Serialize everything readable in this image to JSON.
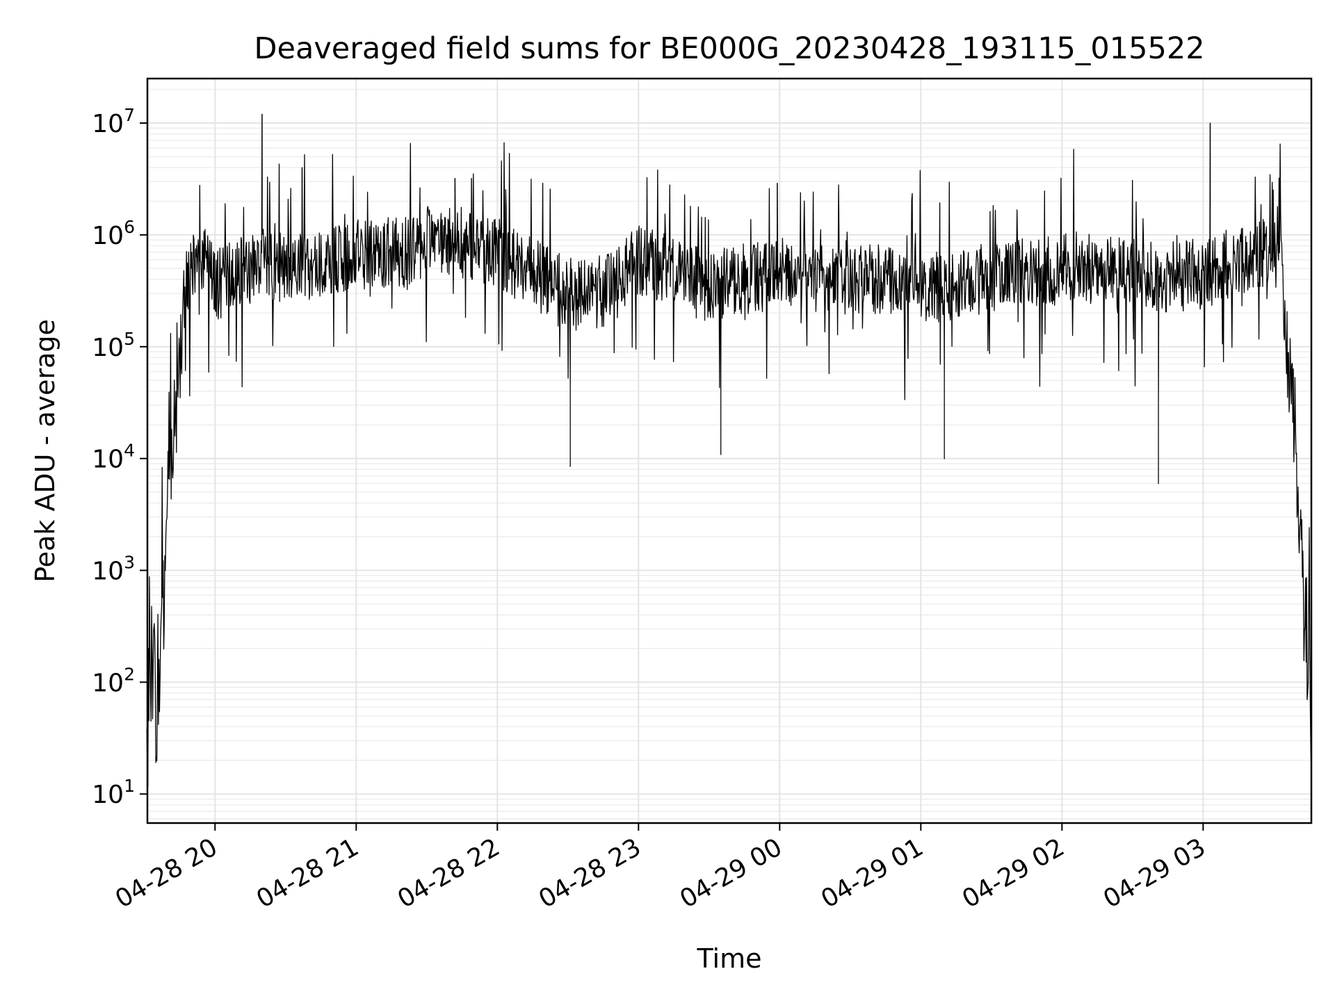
{
  "chart_data": {
    "type": "line",
    "title": "Deaveraged field sums for BE000G_20230428_193115_015522",
    "xlabel": "Time",
    "ylabel": "Peak ADU - average",
    "yscale": "log",
    "xlim": [
      "2023-04-28 19:31:15",
      "2023-04-29 03:46:00"
    ],
    "ylim": [
      5.5,
      25000000
    ],
    "grid": true,
    "line_color": "#000000",
    "x_ticks": [
      {
        "value": "2023-04-28 20:00",
        "label": "04-28 20"
      },
      {
        "value": "2023-04-28 21:00",
        "label": "04-28 21"
      },
      {
        "value": "2023-04-28 22:00",
        "label": "04-28 22"
      },
      {
        "value": "2023-04-28 23:00",
        "label": "04-28 23"
      },
      {
        "value": "2023-04-29 00:00",
        "label": "04-29 00"
      },
      {
        "value": "2023-04-29 01:00",
        "label": "04-29 01"
      },
      {
        "value": "2023-04-29 02:00",
        "label": "04-29 02"
      },
      {
        "value": "2023-04-29 03:00",
        "label": "04-29 03"
      }
    ],
    "y_ticks": [
      {
        "value": 10,
        "base": "10",
        "exp": "1"
      },
      {
        "value": 100,
        "base": "10",
        "exp": "2"
      },
      {
        "value": 1000,
        "base": "10",
        "exp": "3"
      },
      {
        "value": 10000,
        "base": "10",
        "exp": "4"
      },
      {
        "value": 100000,
        "base": "10",
        "exp": "5"
      },
      {
        "value": 1000000,
        "base": "10",
        "exp": "6"
      },
      {
        "value": 10000000,
        "base": "10",
        "exp": "7"
      }
    ],
    "series": [
      {
        "x": [
          "2023-04-28 19:31",
          "2023-04-28 19:33",
          "2023-04-28 19:35",
          "2023-04-28 19:37",
          "2023-04-28 19:39",
          "2023-04-28 19:41",
          "2023-04-28 19:43",
          "2023-04-28 19:45",
          "2023-04-28 19:47",
          "2023-04-28 19:50",
          "2023-04-28 19:55",
          "2023-04-28 20:00",
          "2023-04-28 20:05",
          "2023-04-28 20:10",
          "2023-04-28 20:15",
          "2023-04-28 20:20",
          "2023-04-28 20:25",
          "2023-04-28 20:30",
          "2023-04-28 20:40",
          "2023-04-28 20:50",
          "2023-04-28 21:00",
          "2023-04-28 21:10",
          "2023-04-28 21:20",
          "2023-04-28 21:30",
          "2023-04-28 21:40",
          "2023-04-28 21:50",
          "2023-04-28 22:00",
          "2023-04-28 22:10",
          "2023-04-28 22:20",
          "2023-04-28 22:30",
          "2023-04-28 22:40",
          "2023-04-28 22:50",
          "2023-04-28 23:00",
          "2023-04-28 23:10",
          "2023-04-28 23:20",
          "2023-04-28 23:30",
          "2023-04-28 23:40",
          "2023-04-28 23:50",
          "2023-04-29 00:00",
          "2023-04-29 00:10",
          "2023-04-29 00:20",
          "2023-04-29 00:30",
          "2023-04-29 00:40",
          "2023-04-29 00:50",
          "2023-04-29 01:00",
          "2023-04-29 01:10",
          "2023-04-29 01:20",
          "2023-04-29 01:30",
          "2023-04-29 01:40",
          "2023-04-29 01:50",
          "2023-04-29 02:00",
          "2023-04-29 02:10",
          "2023-04-29 02:20",
          "2023-04-29 02:30",
          "2023-04-29 02:40",
          "2023-04-29 02:50",
          "2023-04-29 03:00",
          "2023-04-29 03:05",
          "2023-04-29 03:10",
          "2023-04-29 03:15",
          "2023-04-29 03:20",
          "2023-04-29 03:25",
          "2023-04-29 03:30",
          "2023-04-29 03:33",
          "2023-04-29 03:35",
          "2023-04-29 03:37",
          "2023-04-29 03:39",
          "2023-04-29 03:41",
          "2023-04-29 03:43",
          "2023-04-29 03:45",
          "2023-04-29 03:46"
        ],
        "y": [
          30,
          150,
          60,
          300,
          900,
          10000,
          20000,
          60000,
          300000,
          500000,
          600000,
          350000,
          400000,
          450000,
          500000,
          550000,
          500000,
          500000,
          550000,
          600000,
          650000,
          700000,
          700000,
          900000,
          900000,
          800000,
          700000,
          500000,
          400000,
          300000,
          280000,
          350000,
          600000,
          500000,
          400000,
          350000,
          380000,
          420000,
          450000,
          450000,
          400000,
          380000,
          400000,
          380000,
          350000,
          330000,
          380000,
          420000,
          450000,
          430000,
          550000,
          500000,
          480000,
          450000,
          420000,
          430000,
          450000,
          500000,
          550000,
          600000,
          650000,
          700000,
          800000,
          1000000,
          100000,
          50000,
          20000,
          3000,
          600,
          150,
          60
        ],
        "spikes": [
          {
            "x": "2023-04-28 20:20",
            "y": 12000000
          },
          {
            "x": "2023-04-28 20:37",
            "y": 4000000
          },
          {
            "x": "2023-04-28 21:42",
            "y": 3200000
          },
          {
            "x": "2023-04-28 21:49",
            "y": 3200000
          },
          {
            "x": "2023-04-28 22:31",
            "y": 47000
          },
          {
            "x": "2023-04-28 23:35",
            "y": 60000
          },
          {
            "x": "2023-04-28 23:59",
            "y": 2900000
          },
          {
            "x": "2023-04-29 01:10",
            "y": 55000
          },
          {
            "x": "2023-04-29 02:41",
            "y": 33000
          },
          {
            "x": "2023-04-29 03:03",
            "y": 10000000
          }
        ]
      }
    ]
  }
}
